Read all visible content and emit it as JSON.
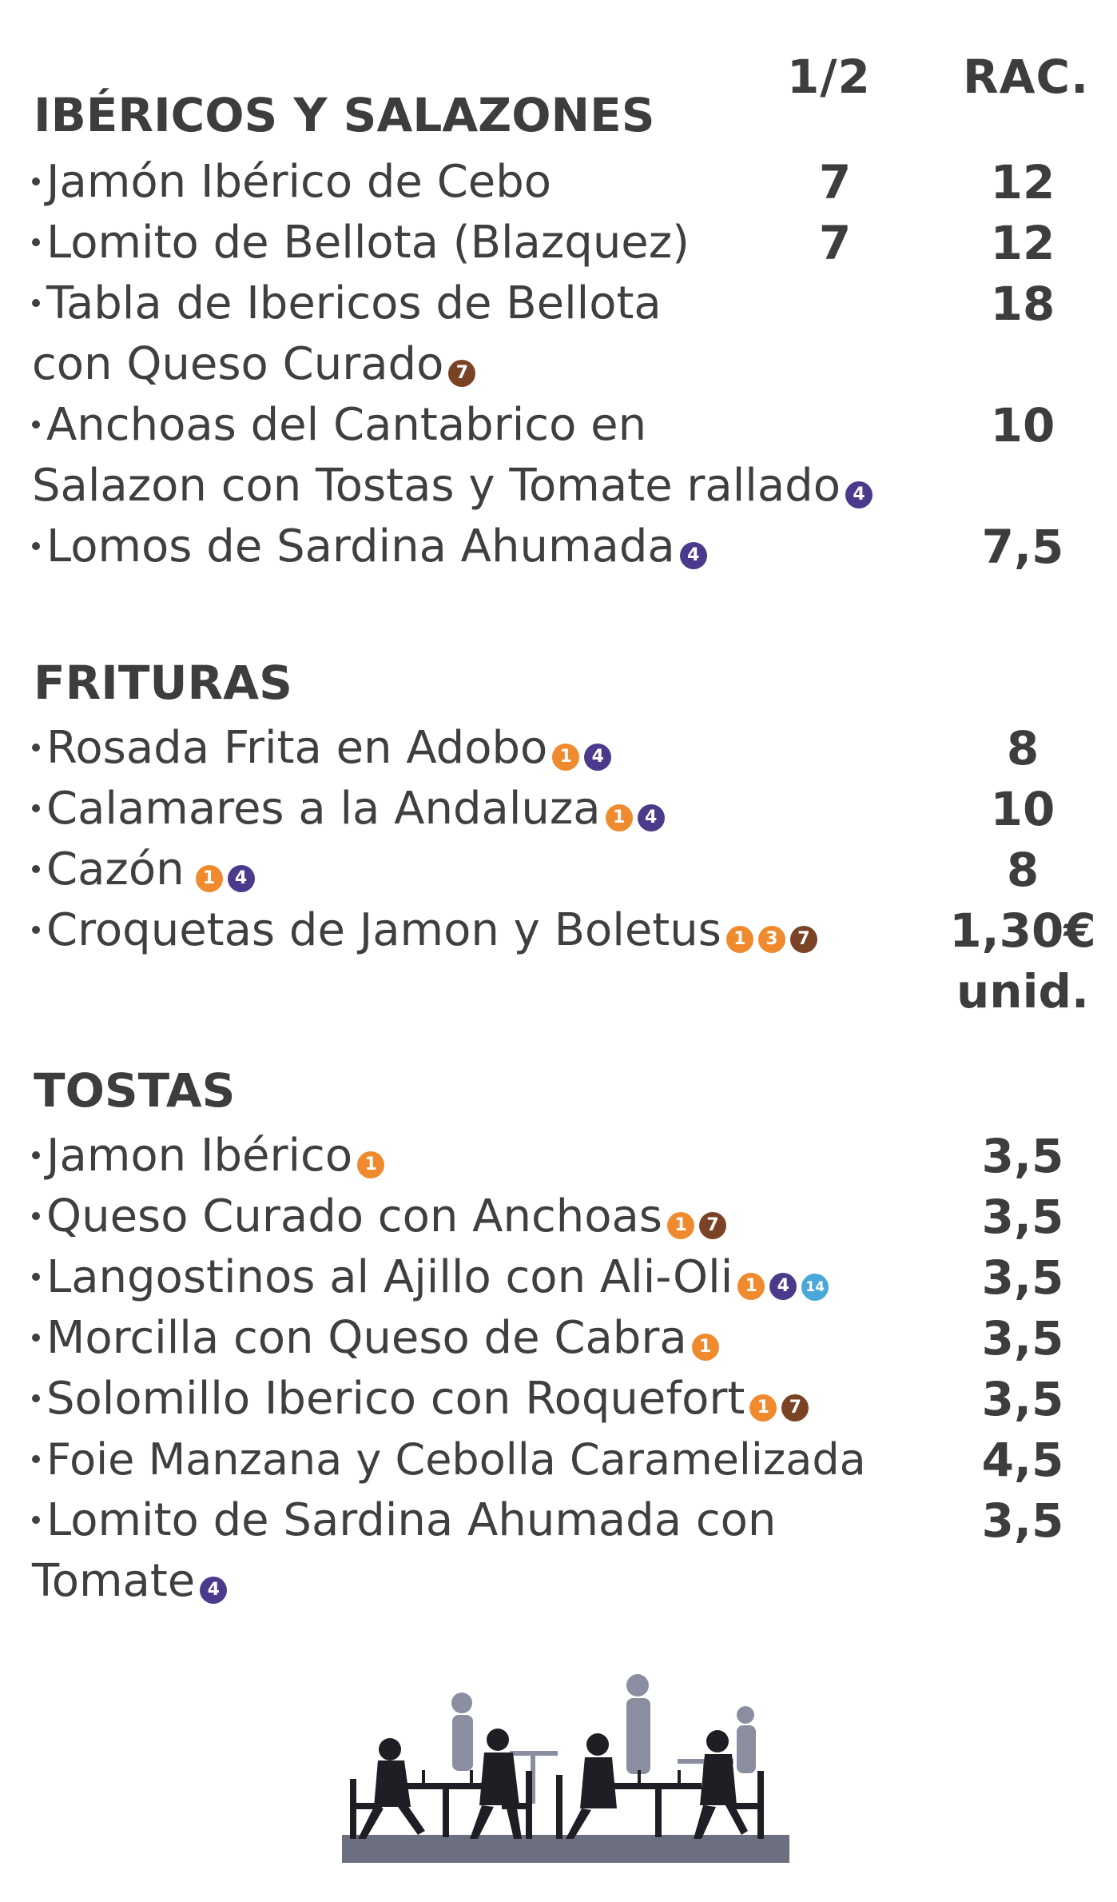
{
  "columns": {
    "half": "1/2",
    "rac": "RAC."
  },
  "sections": [
    {
      "title": "IBÉRICOS Y SALAZONES"
    },
    {
      "title": "FRITURAS"
    },
    {
      "title": "TOSTAS"
    }
  ],
  "items": {
    "jamon_cebo": {
      "text": "Jamón Ibérico de Cebo",
      "half": "7",
      "rac": "12"
    },
    "lomito_bellota": {
      "text": "Lomito de Bellota (Blazquez)",
      "half": "7",
      "rac": "12"
    },
    "tabla_l1": {
      "text": "Tabla de Ibericos de Bellota",
      "rac": "18"
    },
    "tabla_l2": {
      "text": "con Queso Curado"
    },
    "anchoas_l1": {
      "text": "Anchoas del Cantabrico en",
      "rac": "10"
    },
    "anchoas_l2": {
      "text": "Salazon con Tostas y Tomate rallado"
    },
    "sardina": {
      "text": "Lomos de Sardina Ahumada",
      "rac": "7,5"
    },
    "rosada": {
      "text": "Rosada Frita en Adobo",
      "rac": "8"
    },
    "calamares": {
      "text": "Calamares a la Andaluza",
      "rac": "10"
    },
    "cazon": {
      "text": "Cazón",
      "rac": "8"
    },
    "croquetas": {
      "text": "Croquetas de Jamon y Boletus",
      "rac": "1,30€",
      "rac2": "unid."
    },
    "t_jamon": {
      "text": "Jamon Ibérico",
      "rac": "3,5"
    },
    "t_queso": {
      "text": "Queso Curado con Anchoas",
      "rac": "3,5"
    },
    "t_langostinos": {
      "text": "Langostinos al Ajillo con Ali-Oli",
      "rac": "3,5"
    },
    "t_morcilla": {
      "text": "Morcilla con Queso de Cabra",
      "rac": "3,5"
    },
    "t_solomillo": {
      "text": "Solomillo Iberico con Roquefort",
      "rac": "3,5"
    },
    "t_foie": {
      "text": "Foie Manzana y Cebolla Caramelizada",
      "rac": "4,5"
    },
    "t_lomito_l1": {
      "text": "Lomito de Sardina Ahumada con",
      "rac": "3,5"
    },
    "t_lomito_l2": {
      "text": "Tomate"
    }
  },
  "allergens": {
    "one": "1",
    "three": "3",
    "four": "4",
    "seven": "7",
    "fourteen": "14"
  },
  "colors": {
    "orange": "#f08a2e",
    "purple": "#4b3a8c",
    "brown": "#7a4326",
    "blue": "#4aa8d8",
    "text": "#3f3f3f",
    "illustration": "#5a5e70"
  },
  "illustration": {
    "icon": "restaurant-scene-illustration"
  }
}
